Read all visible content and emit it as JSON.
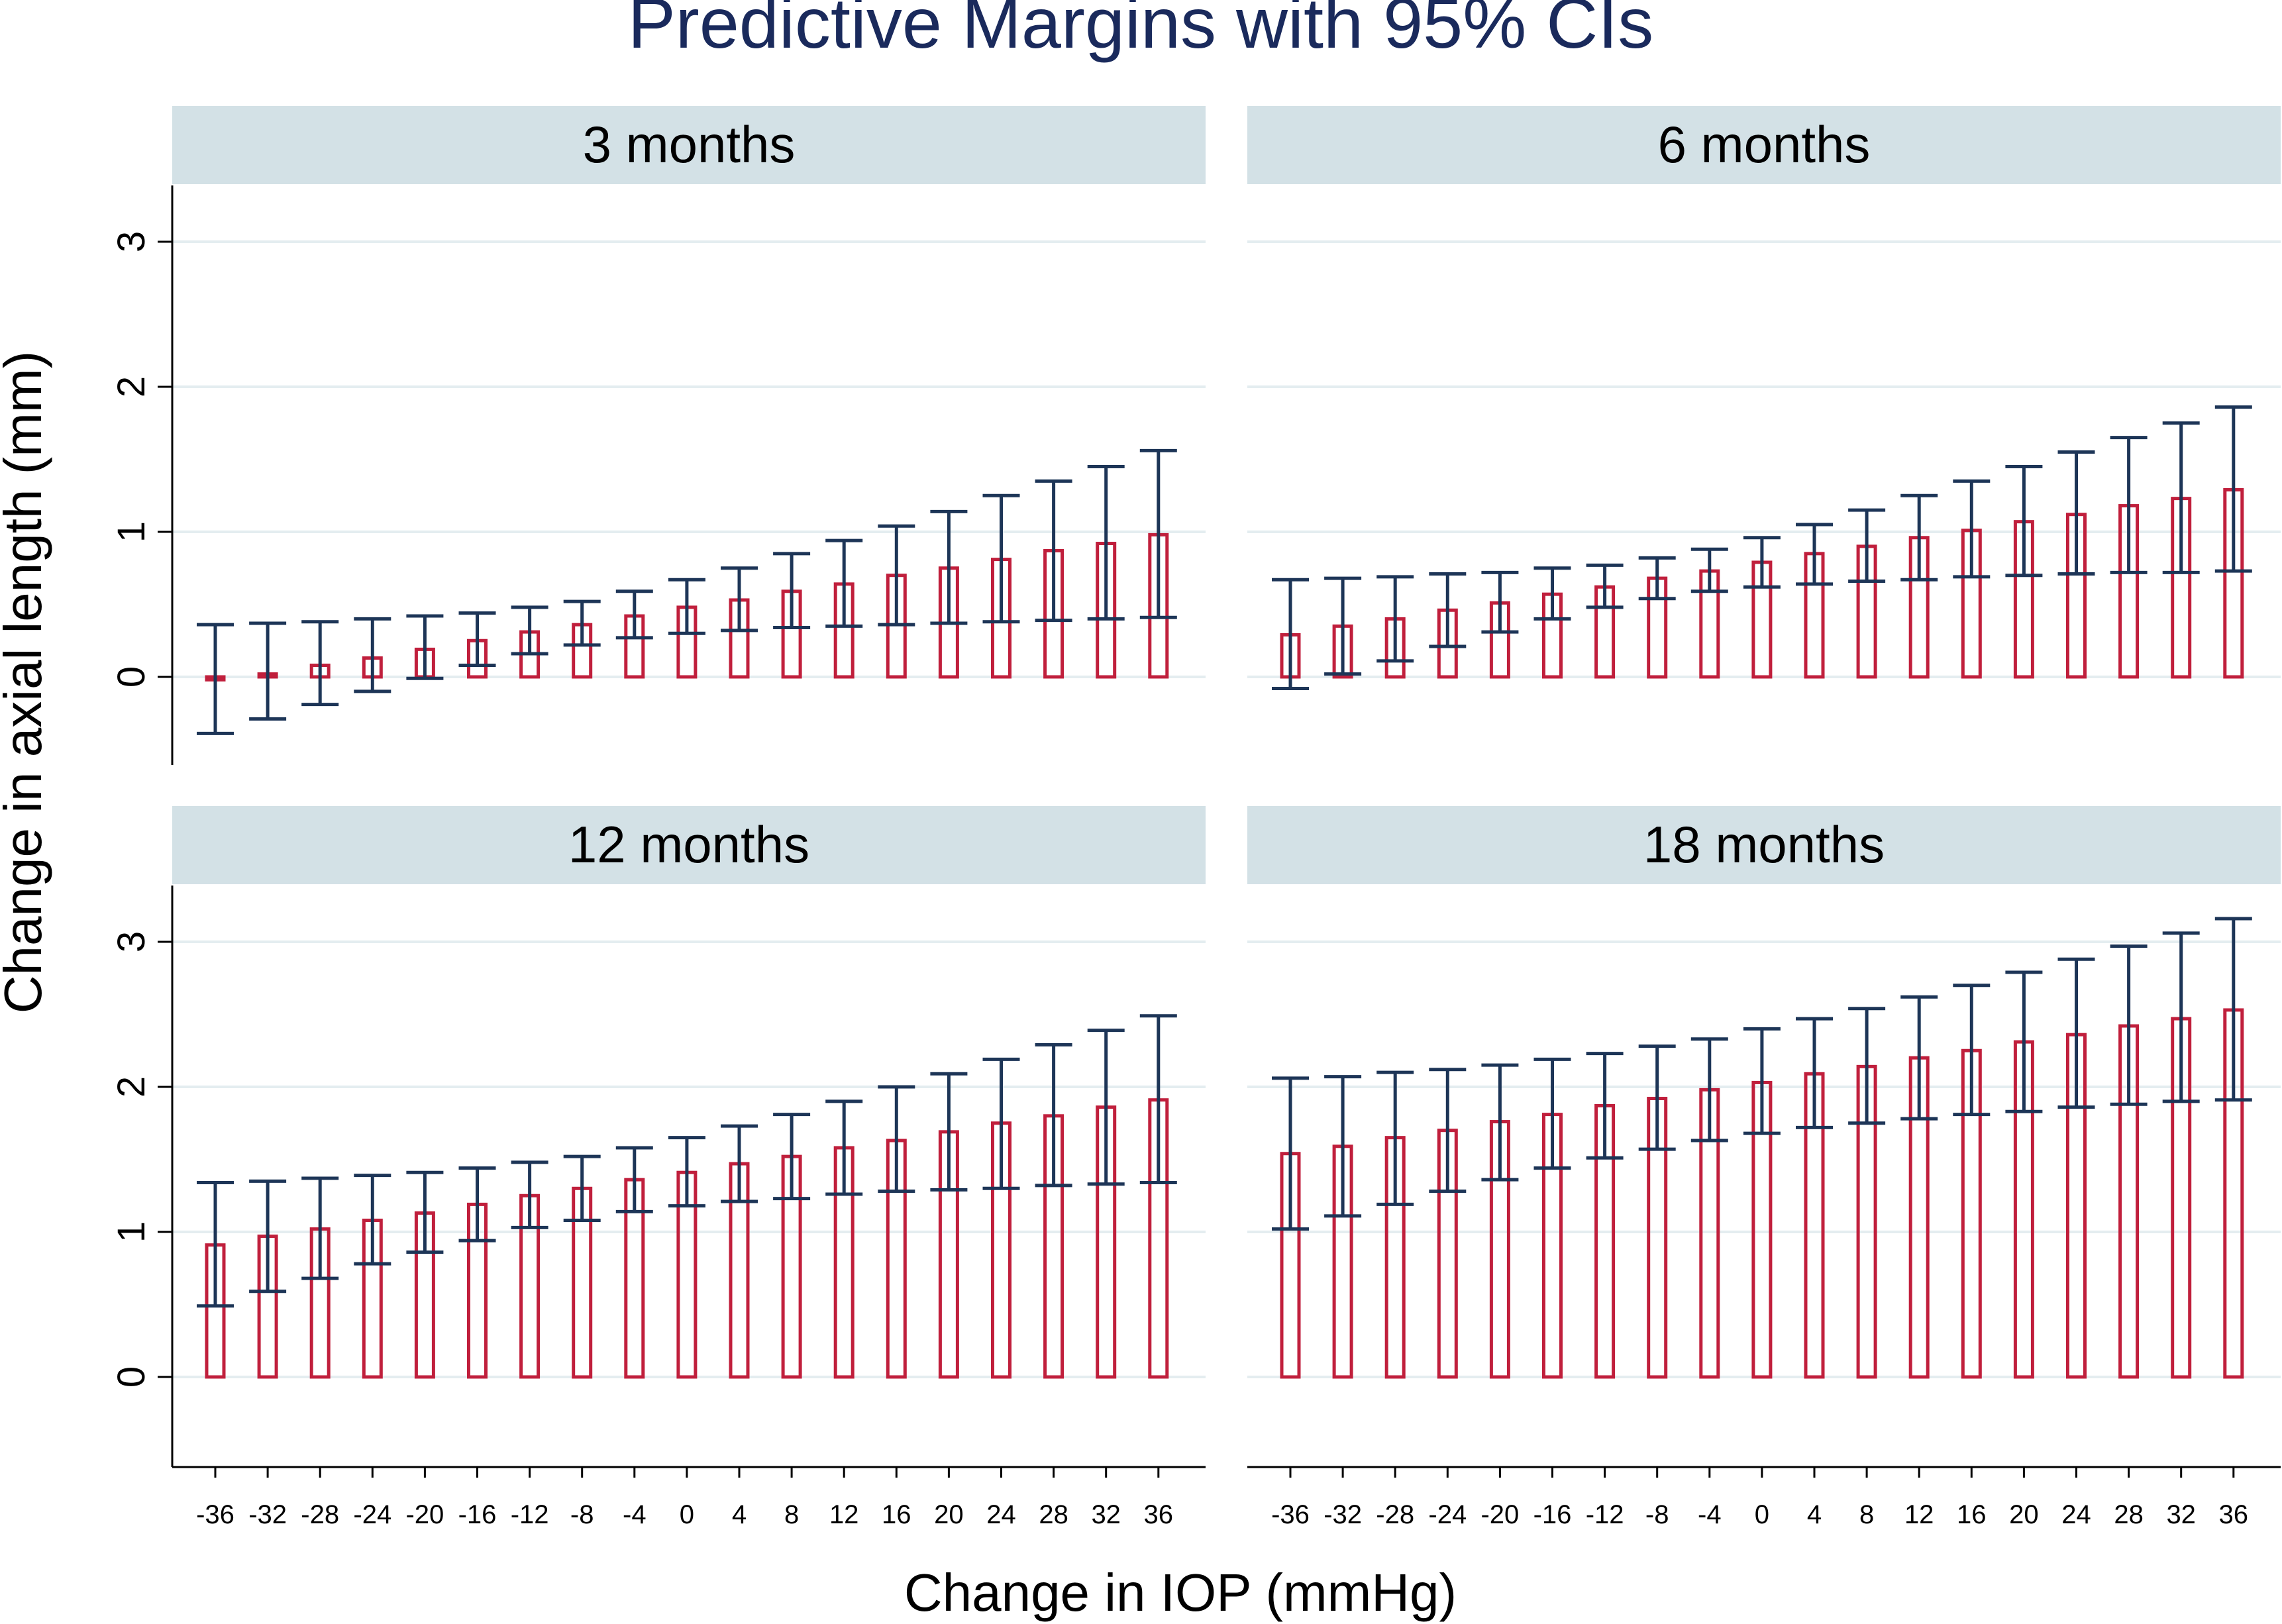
{
  "figure": {
    "title": "Predictive Margins with 95% CIs",
    "xlabel": "Change in IOP (mmHg)",
    "ylabel": "Change in axial length (mm)"
  },
  "colors": {
    "bar": "#c01f3c",
    "ci": "#1d3557",
    "title": "#1a2a5c",
    "strip": "#d3e1e6",
    "grid": "#e4edf0",
    "axis": "#000000"
  },
  "chart_data": {
    "type": "bar",
    "categories": [
      "-36",
      "-32",
      "-28",
      "-24",
      "-20",
      "-16",
      "-12",
      "-8",
      "-4",
      "0",
      "4",
      "8",
      "12",
      "16",
      "20",
      "24",
      "28",
      "32",
      "36"
    ],
    "ylim": [
      -0.6,
      3.4
    ],
    "yticks": [
      0,
      1,
      2,
      3
    ],
    "panels": [
      {
        "name": "3 months",
        "values": [
          -0.02,
          0.02,
          0.08,
          0.13,
          0.19,
          0.25,
          0.31,
          0.36,
          0.42,
          0.48,
          0.53,
          0.59,
          0.64,
          0.7,
          0.75,
          0.81,
          0.87,
          0.92,
          0.98
        ],
        "ci_lower": [
          -0.39,
          -0.29,
          -0.19,
          -0.1,
          -0.01,
          0.08,
          0.16,
          0.22,
          0.27,
          0.3,
          0.32,
          0.34,
          0.35,
          0.36,
          0.37,
          0.38,
          0.39,
          0.4,
          0.41
        ],
        "ci_upper": [
          0.36,
          0.37,
          0.38,
          0.4,
          0.42,
          0.44,
          0.48,
          0.52,
          0.59,
          0.67,
          0.75,
          0.85,
          0.94,
          1.04,
          1.14,
          1.25,
          1.35,
          1.45,
          1.56
        ]
      },
      {
        "name": "6 months",
        "values": [
          0.29,
          0.35,
          0.4,
          0.46,
          0.51,
          0.57,
          0.62,
          0.68,
          0.73,
          0.79,
          0.85,
          0.9,
          0.96,
          1.01,
          1.07,
          1.12,
          1.18,
          1.23,
          1.29
        ],
        "ci_lower": [
          -0.08,
          0.02,
          0.11,
          0.21,
          0.31,
          0.4,
          0.48,
          0.54,
          0.59,
          0.62,
          0.64,
          0.66,
          0.67,
          0.69,
          0.7,
          0.71,
          0.72,
          0.72,
          0.73
        ],
        "ci_upper": [
          0.67,
          0.68,
          0.69,
          0.71,
          0.72,
          0.75,
          0.77,
          0.82,
          0.88,
          0.96,
          1.05,
          1.15,
          1.25,
          1.35,
          1.45,
          1.55,
          1.65,
          1.75,
          1.86
        ]
      },
      {
        "name": "12 months",
        "values": [
          0.91,
          0.97,
          1.02,
          1.08,
          1.13,
          1.19,
          1.25,
          1.3,
          1.36,
          1.41,
          1.47,
          1.52,
          1.58,
          1.63,
          1.69,
          1.75,
          1.8,
          1.86,
          1.91
        ],
        "ci_lower": [
          0.49,
          0.59,
          0.68,
          0.78,
          0.86,
          0.94,
          1.03,
          1.08,
          1.14,
          1.18,
          1.21,
          1.23,
          1.26,
          1.28,
          1.29,
          1.3,
          1.32,
          1.33,
          1.34
        ],
        "ci_upper": [
          1.34,
          1.35,
          1.37,
          1.39,
          1.41,
          1.44,
          1.48,
          1.52,
          1.58,
          1.65,
          1.73,
          1.81,
          1.9,
          2.0,
          2.09,
          2.19,
          2.29,
          2.39,
          2.49
        ]
      },
      {
        "name": "18  months",
        "values": [
          1.54,
          1.59,
          1.65,
          1.7,
          1.76,
          1.81,
          1.87,
          1.92,
          1.98,
          2.03,
          2.09,
          2.14,
          2.2,
          2.25,
          2.31,
          2.36,
          2.42,
          2.47,
          2.53
        ],
        "ci_lower": [
          1.02,
          1.11,
          1.19,
          1.28,
          1.36,
          1.44,
          1.51,
          1.57,
          1.63,
          1.68,
          1.72,
          1.75,
          1.78,
          1.81,
          1.83,
          1.86,
          1.88,
          1.9,
          1.91
        ],
        "ci_upper": [
          2.06,
          2.07,
          2.1,
          2.12,
          2.15,
          2.19,
          2.23,
          2.28,
          2.33,
          2.4,
          2.47,
          2.54,
          2.62,
          2.7,
          2.79,
          2.88,
          2.97,
          3.06,
          3.16
        ]
      }
    ]
  }
}
